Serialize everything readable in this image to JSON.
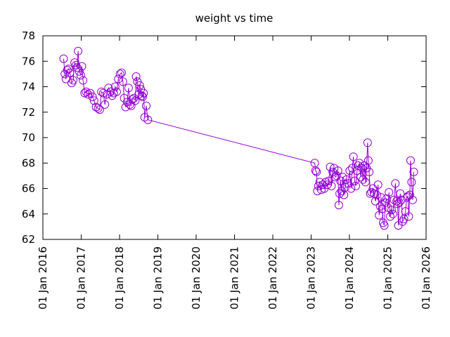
{
  "chart_data": {
    "type": "line",
    "title": "weight vs time",
    "xlabel": "",
    "ylabel": "",
    "xlim": [
      "2016-01-01",
      "2026-01-01"
    ],
    "ylim": [
      62,
      78
    ],
    "x_ticks": [
      "01 Jan 2016",
      "01 Jan 2017",
      "01 Jan 2018",
      "01 Jan 2019",
      "01 Jan 2020",
      "01 Jan 2021",
      "01 Jan 2022",
      "01 Jan 2023",
      "01 Jan 2024",
      "01 Jan 2025",
      "01 Jan 2026"
    ],
    "x_tick_dates": [
      "2016-01-01",
      "2017-01-01",
      "2018-01-01",
      "2019-01-01",
      "2020-01-01",
      "2021-01-01",
      "2022-01-01",
      "2023-01-01",
      "2024-01-01",
      "2025-01-01",
      "2026-01-01"
    ],
    "y_ticks": [
      62,
      64,
      66,
      68,
      70,
      72,
      74,
      76,
      78
    ],
    "grid": false,
    "legend": "none",
    "series": [
      {
        "color": "#9400d3",
        "marker": "circle",
        "points": [
          [
            "2016-07-17",
            76.2
          ],
          [
            "2016-07-28",
            75.0
          ],
          [
            "2016-08-08",
            74.6
          ],
          [
            "2016-08-20",
            75.3
          ],
          [
            "2016-09-02",
            75.4
          ],
          [
            "2016-09-15",
            75.1
          ],
          [
            "2016-10-02",
            74.3
          ],
          [
            "2016-10-16",
            74.5
          ],
          [
            "2016-10-30",
            75.9
          ],
          [
            "2016-11-12",
            75.7
          ],
          [
            "2016-11-22",
            75.5
          ],
          [
            "2016-12-02",
            76.8
          ],
          [
            "2016-12-13",
            75.2
          ],
          [
            "2016-12-27",
            74.9
          ],
          [
            "2017-01-06",
            75.6
          ],
          [
            "2017-01-18",
            74.5
          ],
          [
            "2017-02-02",
            73.5
          ],
          [
            "2017-02-16",
            73.6
          ],
          [
            "2017-03-07",
            73.4
          ],
          [
            "2017-03-27",
            73.5
          ],
          [
            "2017-04-18",
            73.2
          ],
          [
            "2017-05-03",
            72.9
          ],
          [
            "2017-05-22",
            72.4
          ],
          [
            "2017-06-10",
            72.3
          ],
          [
            "2017-06-26",
            72.2
          ],
          [
            "2017-07-12",
            73.6
          ],
          [
            "2017-07-30",
            73.5
          ],
          [
            "2017-08-14",
            72.6
          ],
          [
            "2017-09-02",
            73.4
          ],
          [
            "2017-09-18",
            73.9
          ],
          [
            "2017-10-06",
            73.6
          ],
          [
            "2017-10-22",
            73.3
          ],
          [
            "2017-11-06",
            73.5
          ],
          [
            "2017-11-20",
            74.0
          ],
          [
            "2017-12-04",
            73.6
          ],
          [
            "2017-12-20",
            74.6
          ],
          [
            "2018-01-05",
            75.0
          ],
          [
            "2018-01-20",
            75.1
          ],
          [
            "2018-02-02",
            74.4
          ],
          [
            "2018-02-14",
            73.1
          ],
          [
            "2018-02-28",
            72.4
          ],
          [
            "2018-03-14",
            72.8
          ],
          [
            "2018-03-28",
            73.9
          ],
          [
            "2018-04-10",
            72.6
          ],
          [
            "2018-04-22",
            72.5
          ],
          [
            "2018-05-04",
            73.0
          ],
          [
            "2018-05-18",
            73.1
          ],
          [
            "2018-05-30",
            72.9
          ],
          [
            "2018-06-08",
            74.8
          ],
          [
            "2018-06-20",
            74.4
          ],
          [
            "2018-07-03",
            73.4
          ],
          [
            "2018-07-12",
            74.1
          ],
          [
            "2018-07-22",
            73.8
          ],
          [
            "2018-08-01",
            73.3
          ],
          [
            "2018-08-10",
            73.2
          ],
          [
            "2018-08-18",
            73.5
          ],
          [
            "2018-08-28",
            71.6
          ],
          [
            "2018-09-12",
            72.5
          ],
          [
            "2018-09-28",
            71.4
          ],
          [
            "2023-02-04",
            68.0
          ],
          [
            "2023-02-12",
            67.4
          ],
          [
            "2023-02-22",
            67.3
          ],
          [
            "2023-03-02",
            65.8
          ],
          [
            "2023-03-12",
            66.2
          ],
          [
            "2023-03-24",
            66.5
          ],
          [
            "2023-04-08",
            65.9
          ],
          [
            "2023-04-22",
            66.3
          ],
          [
            "2023-05-06",
            66.0
          ],
          [
            "2023-05-20",
            66.5
          ],
          [
            "2023-06-04",
            66.3
          ],
          [
            "2023-06-18",
            66.6
          ],
          [
            "2023-07-02",
            67.7
          ],
          [
            "2023-07-14",
            66.2
          ],
          [
            "2023-07-26",
            67.3
          ],
          [
            "2023-08-08",
            67.6
          ],
          [
            "2023-08-20",
            66.9
          ],
          [
            "2023-09-02",
            67.0
          ],
          [
            "2023-09-14",
            67.4
          ],
          [
            "2023-09-22",
            64.7
          ],
          [
            "2023-09-30",
            65.6
          ],
          [
            "2023-10-08",
            66.6
          ],
          [
            "2023-10-18",
            65.8
          ],
          [
            "2023-10-30",
            66.9
          ],
          [
            "2023-11-10",
            65.5
          ],
          [
            "2023-11-22",
            66.1
          ],
          [
            "2023-12-04",
            66.7
          ],
          [
            "2023-12-18",
            66.4
          ],
          [
            "2024-01-04",
            67.4
          ],
          [
            "2024-01-16",
            66.0
          ],
          [
            "2024-01-28",
            67.6
          ],
          [
            "2024-02-08",
            68.5
          ],
          [
            "2024-02-20",
            66.6
          ],
          [
            "2024-03-02",
            66.2
          ],
          [
            "2024-03-14",
            67.4
          ],
          [
            "2024-03-26",
            67.8
          ],
          [
            "2024-04-06",
            68.0
          ],
          [
            "2024-04-18",
            66.9
          ],
          [
            "2024-04-30",
            67.6
          ],
          [
            "2024-05-10",
            66.7
          ],
          [
            "2024-05-22",
            67.8
          ],
          [
            "2024-06-02",
            66.5
          ],
          [
            "2024-06-12",
            67.6
          ],
          [
            "2024-06-22",
            69.6
          ],
          [
            "2024-06-30",
            68.2
          ],
          [
            "2024-07-08",
            67.3
          ],
          [
            "2024-07-18",
            65.6
          ],
          [
            "2024-07-30",
            65.7
          ],
          [
            "2024-08-12",
            66.0
          ],
          [
            "2024-08-24",
            65.6
          ],
          [
            "2024-09-05",
            65.0
          ],
          [
            "2024-09-18",
            65.5
          ],
          [
            "2024-09-30",
            66.3
          ],
          [
            "2024-10-10",
            63.9
          ],
          [
            "2024-10-20",
            64.6
          ],
          [
            "2024-10-30",
            65.3
          ],
          [
            "2024-11-08",
            64.4
          ],
          [
            "2024-11-18",
            63.3
          ],
          [
            "2024-11-28",
            63.1
          ],
          [
            "2024-12-08",
            64.9
          ],
          [
            "2024-12-20",
            65.2
          ],
          [
            "2025-01-02",
            64.5
          ],
          [
            "2025-01-12",
            65.7
          ],
          [
            "2025-01-24",
            63.8
          ],
          [
            "2025-02-06",
            64.3
          ],
          [
            "2025-02-18",
            64.0
          ],
          [
            "2025-03-02",
            65.1
          ],
          [
            "2025-03-14",
            66.4
          ],
          [
            "2025-03-26",
            65.0
          ],
          [
            "2025-04-04",
            64.8
          ],
          [
            "2025-04-12",
            63.1
          ],
          [
            "2025-04-20",
            64.9
          ],
          [
            "2025-04-30",
            65.6
          ],
          [
            "2025-05-10",
            65.1
          ],
          [
            "2025-05-22",
            63.4
          ],
          [
            "2025-06-04",
            63.6
          ],
          [
            "2025-06-18",
            64.2
          ],
          [
            "2025-07-02",
            65.3
          ],
          [
            "2025-07-12",
            65.4
          ],
          [
            "2025-07-20",
            63.8
          ],
          [
            "2025-07-30",
            65.5
          ],
          [
            "2025-08-06",
            68.2
          ],
          [
            "2025-08-16",
            66.5
          ],
          [
            "2025-08-26",
            65.1
          ],
          [
            "2025-09-06",
            67.3
          ]
        ]
      }
    ]
  }
}
